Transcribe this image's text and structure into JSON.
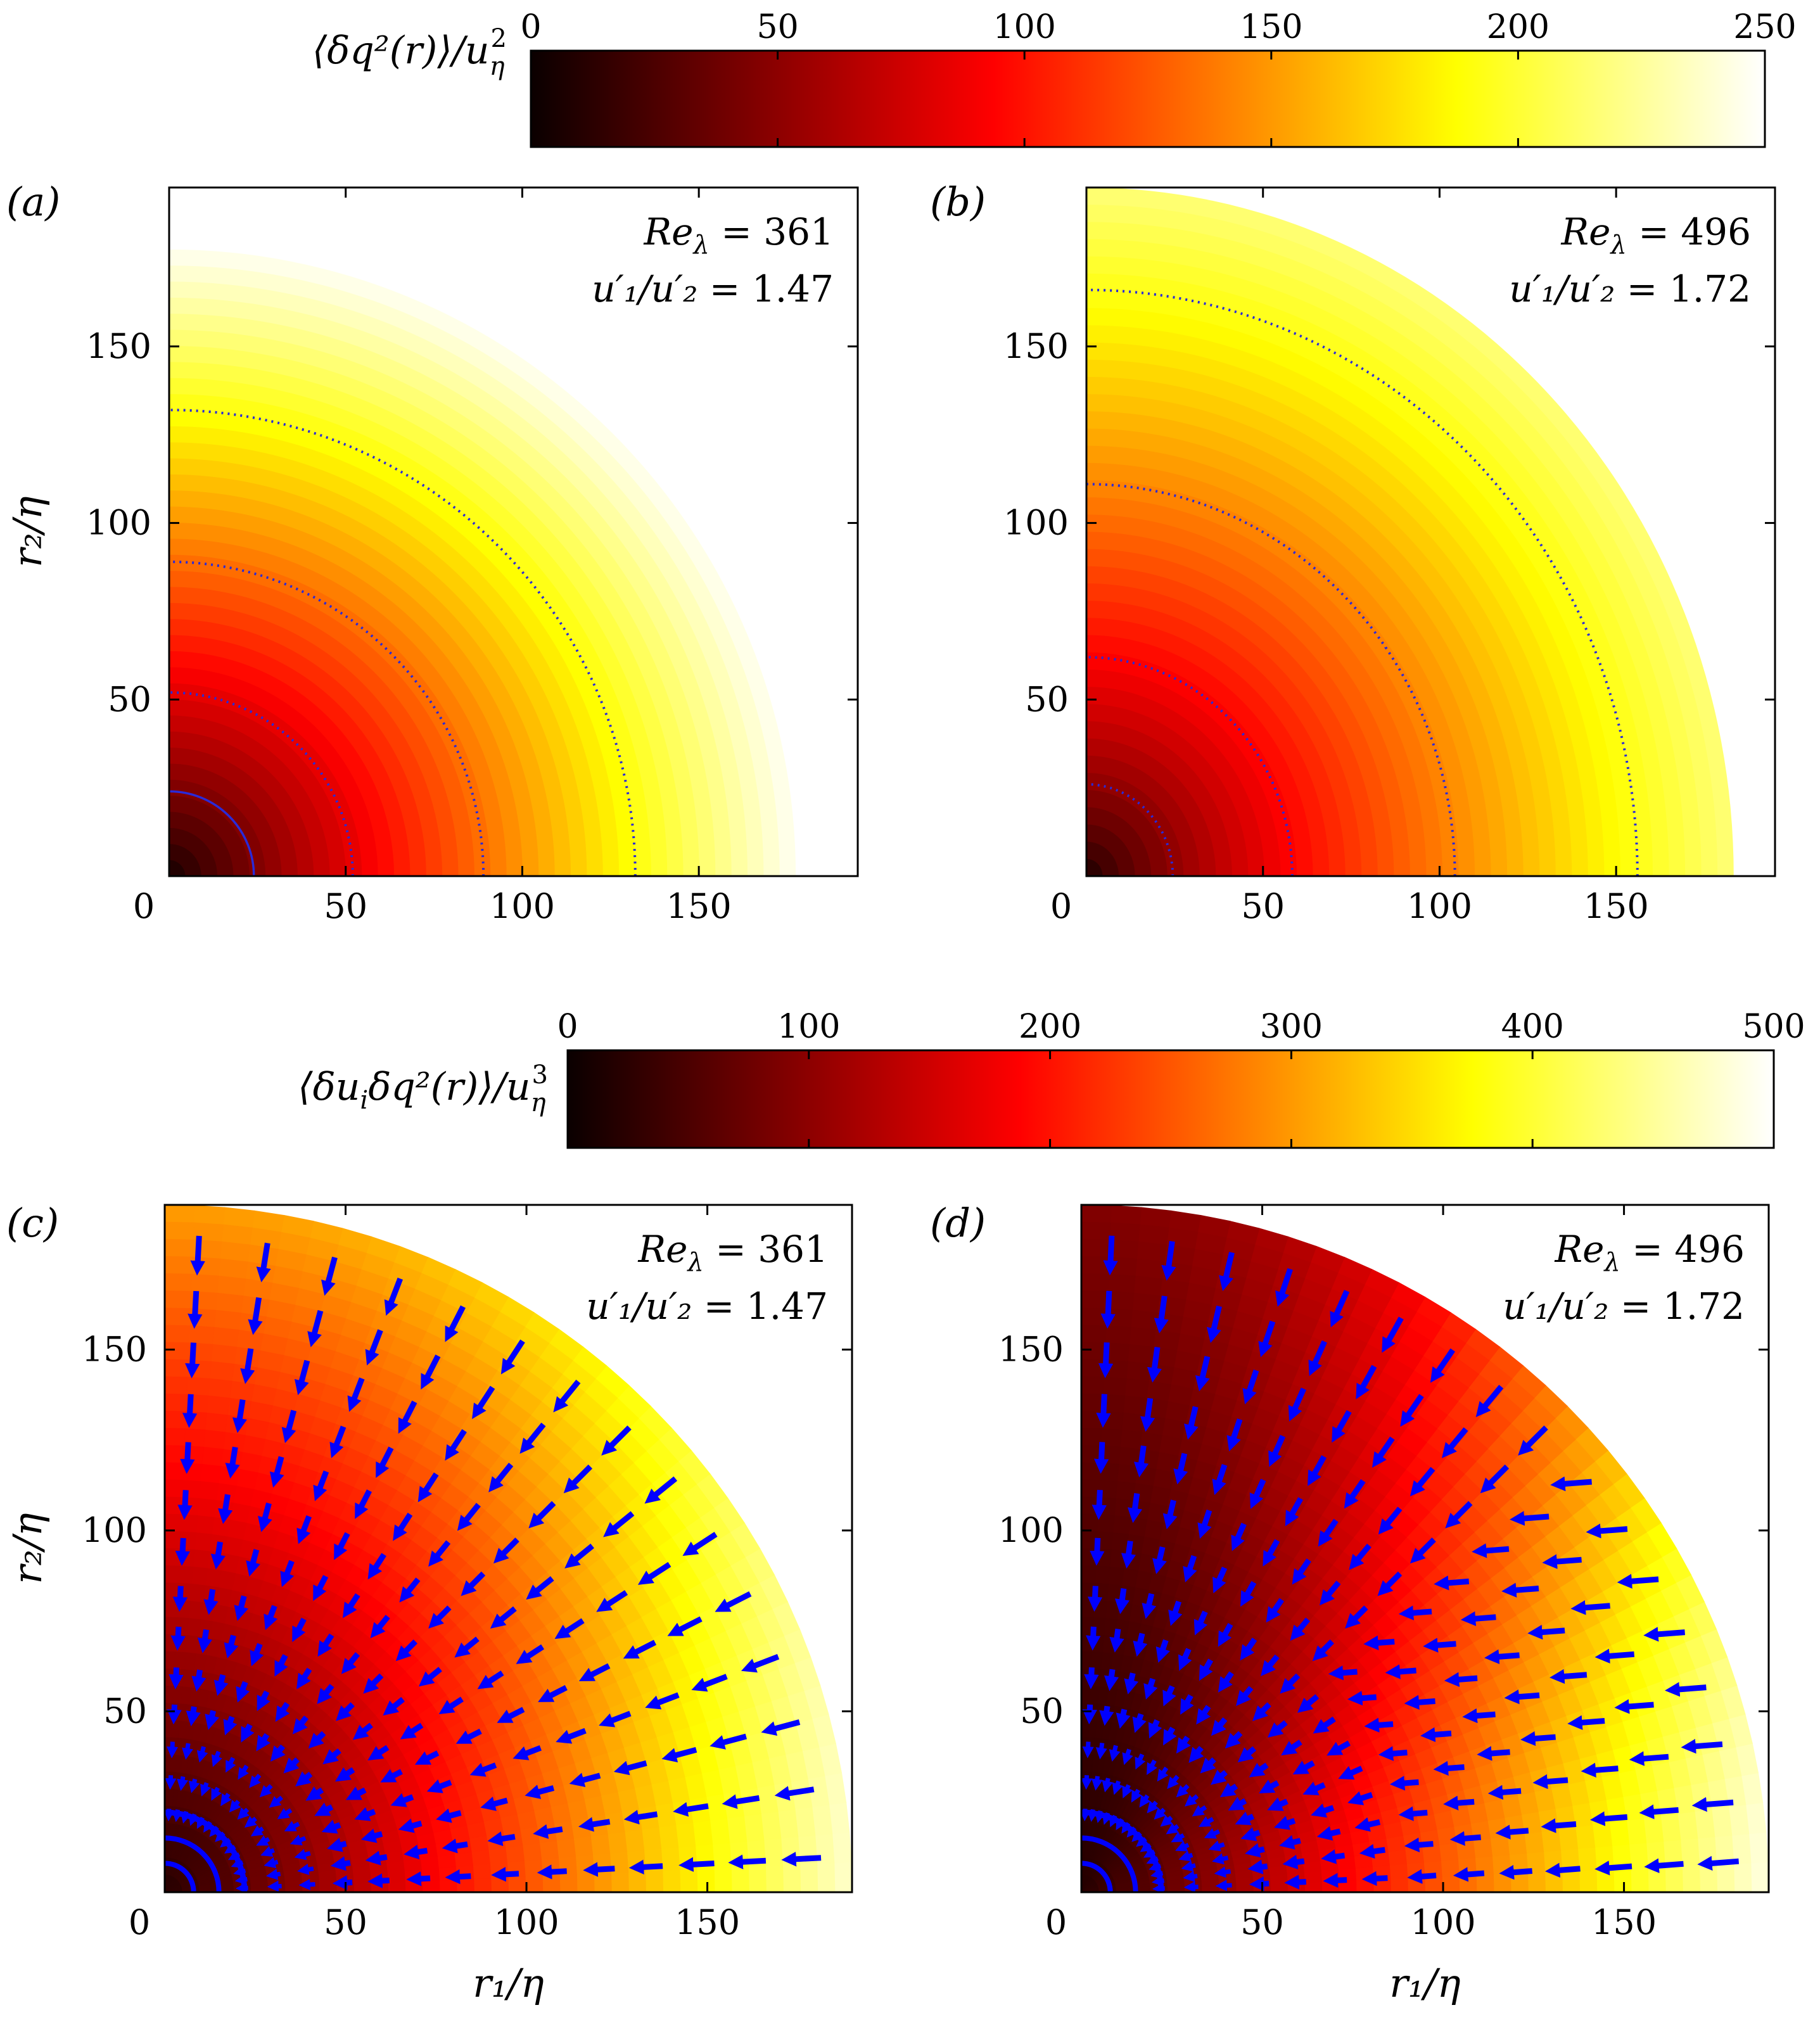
{
  "colorbars": [
    {
      "id": "cb1",
      "label_main": "⟨δq²(r)⟩/u",
      "label_sub": "η",
      "label_sup": "2",
      "min": 0,
      "max": 250,
      "ticks": [
        "0",
        "50",
        "100",
        "150",
        "200",
        "250"
      ]
    },
    {
      "id": "cb2",
      "label_main": "⟨δu",
      "label_i": "i",
      "label_mid": "δq²(r)⟩/u",
      "label_sub": "η",
      "label_sup": "3",
      "min": 0,
      "max": 500,
      "ticks": [
        "0",
        "100",
        "200",
        "300",
        "400",
        "500"
      ]
    }
  ],
  "chart_data": [
    {
      "panel": "(a)",
      "type": "heatmap",
      "annotation": {
        "re_label": "Re",
        "re_sub": "λ",
        "re_value": "= 361",
        "ratio_label": "u′₁/u′₂",
        "ratio_value": "= 1.47"
      },
      "xlabel": "",
      "ylabel": "r₂/η",
      "xlim": [
        0,
        195
      ],
      "ylim": [
        0,
        195
      ],
      "xticks": [
        "0",
        "50",
        "100",
        "150"
      ],
      "yticks": [
        "50",
        "100",
        "150"
      ],
      "field": {
        "quantity": "⟨δq²(r)⟩/u_η²",
        "aspect_ratio_x_over_y": 1.0,
        "extent_r": 182,
        "value_at_extent": 250,
        "exponent": 0.9
      },
      "contours_r": [
        24,
        52,
        89,
        132
      ]
    },
    {
      "panel": "(b)",
      "type": "heatmap",
      "annotation": {
        "re_label": "Re",
        "re_sub": "λ",
        "re_value": "= 496",
        "ratio_label": "u′₁/u′₂",
        "ratio_value": "= 1.72"
      },
      "xlabel": "",
      "ylabel": "",
      "xlim": [
        0,
        195
      ],
      "ylim": [
        0,
        195
      ],
      "xticks": [
        "0",
        "50",
        "100",
        "150"
      ],
      "yticks": [
        "50",
        "100",
        "150"
      ],
      "field": {
        "quantity": "⟨δq²(r)⟩/u_η²",
        "aspect_ratio_x_over_y": 0.94,
        "extent_r": 195,
        "value_at_extent": 215,
        "exponent": 0.75
      },
      "contours_r": [
        26,
        62,
        111,
        166
      ]
    },
    {
      "panel": "(c)",
      "type": "heatmap",
      "annotation": {
        "re_label": "Re",
        "re_sub": "λ",
        "re_value": "= 361",
        "ratio_label": "u′₁/u′₂",
        "ratio_value": "= 1.47"
      },
      "xlabel": "r₁/η",
      "ylabel": "r₂/η",
      "xlim": [
        0,
        190
      ],
      "ylim": [
        0,
        190
      ],
      "xticks": [
        "0",
        "50",
        "100",
        "150"
      ],
      "yticks": [
        "50",
        "100",
        "150"
      ],
      "field": {
        "quantity": "⟨δu_i δq²(r)⟩/u_η³",
        "extent_r": 190,
        "value_at_extent_axis_r1": 470,
        "value_at_extent_axis_r2": 300
      },
      "arrows": {
        "spokes": 15,
        "rings": [
          22,
          31,
          40,
          50,
          60,
          71,
          82,
          95,
          108,
          121,
          134,
          148,
          162,
          177
        ]
      },
      "inner_contours_r": [
        8,
        15,
        22
      ]
    },
    {
      "panel": "(d)",
      "type": "heatmap",
      "annotation": {
        "re_label": "Re",
        "re_sub": "λ",
        "re_value": "= 496",
        "ratio_label": "u′₁/u′₂",
        "ratio_value": "= 1.72"
      },
      "xlabel": "r₁/η",
      "ylabel": "",
      "xlim": [
        0,
        190
      ],
      "ylim": [
        0,
        190
      ],
      "xticks": [
        "0",
        "50",
        "100",
        "150"
      ],
      "yticks": [
        "50",
        "100",
        "150"
      ],
      "field": {
        "quantity": "⟨δu_i δq²(r)⟩/u_η³",
        "extent_r": 190,
        "value_at_extent_axis_r1": 480,
        "value_at_extent_axis_r2": 90
      },
      "arrows": {
        "spokes": 17,
        "rings": [
          22,
          31,
          40,
          50,
          60,
          71,
          82,
          95,
          108,
          121,
          134,
          148,
          162,
          177
        ]
      },
      "inner_contours_r": [
        8,
        15,
        22
      ]
    }
  ]
}
